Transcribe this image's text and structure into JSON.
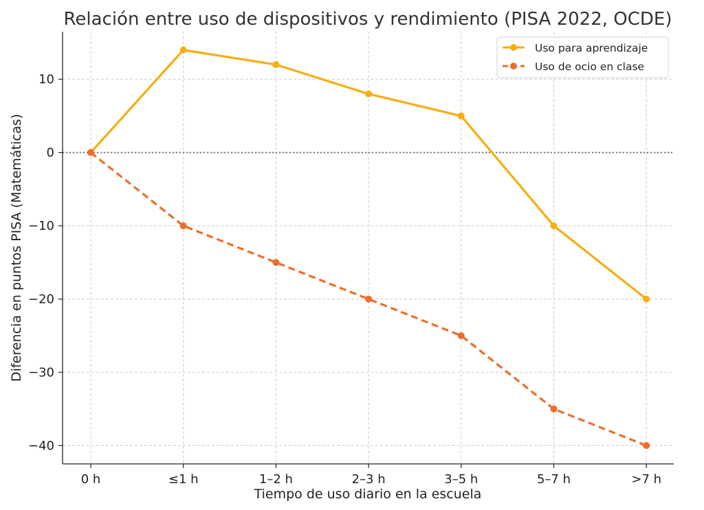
{
  "chart_data": {
    "type": "line",
    "title": "Relación entre uso de dispositivos y rendimiento (PISA 2022, OCDE)",
    "xlabel": "Tiempo de uso diario en la escuela",
    "ylabel": "Diferencia en puntos PISA (Matemáticas)",
    "categories": [
      "0 h",
      "≤1 h",
      "1–2 h",
      "2–3 h",
      "3–5 h",
      "5–7 h",
      ">7 h"
    ],
    "ylim": [
      -42.5,
      16.5
    ],
    "yticks": [
      10,
      0,
      -10,
      -20,
      -30,
      -40
    ],
    "ytick_labels": [
      "10",
      "0",
      "−10",
      "−20",
      "−30",
      "−40"
    ],
    "grid": true,
    "zero_line": true,
    "legend_position": "top-right",
    "series": [
      {
        "name": "Uso para aprendizaje",
        "values": [
          0,
          14,
          12,
          8,
          5,
          -10,
          -20
        ],
        "color": "#f7ae0f",
        "style": "solid"
      },
      {
        "name": "Uso de ocio en clase",
        "values": [
          0,
          -10,
          -15,
          -20,
          -25,
          -35,
          -40
        ],
        "color": "#ef6c2d",
        "style": "dashed"
      }
    ]
  }
}
